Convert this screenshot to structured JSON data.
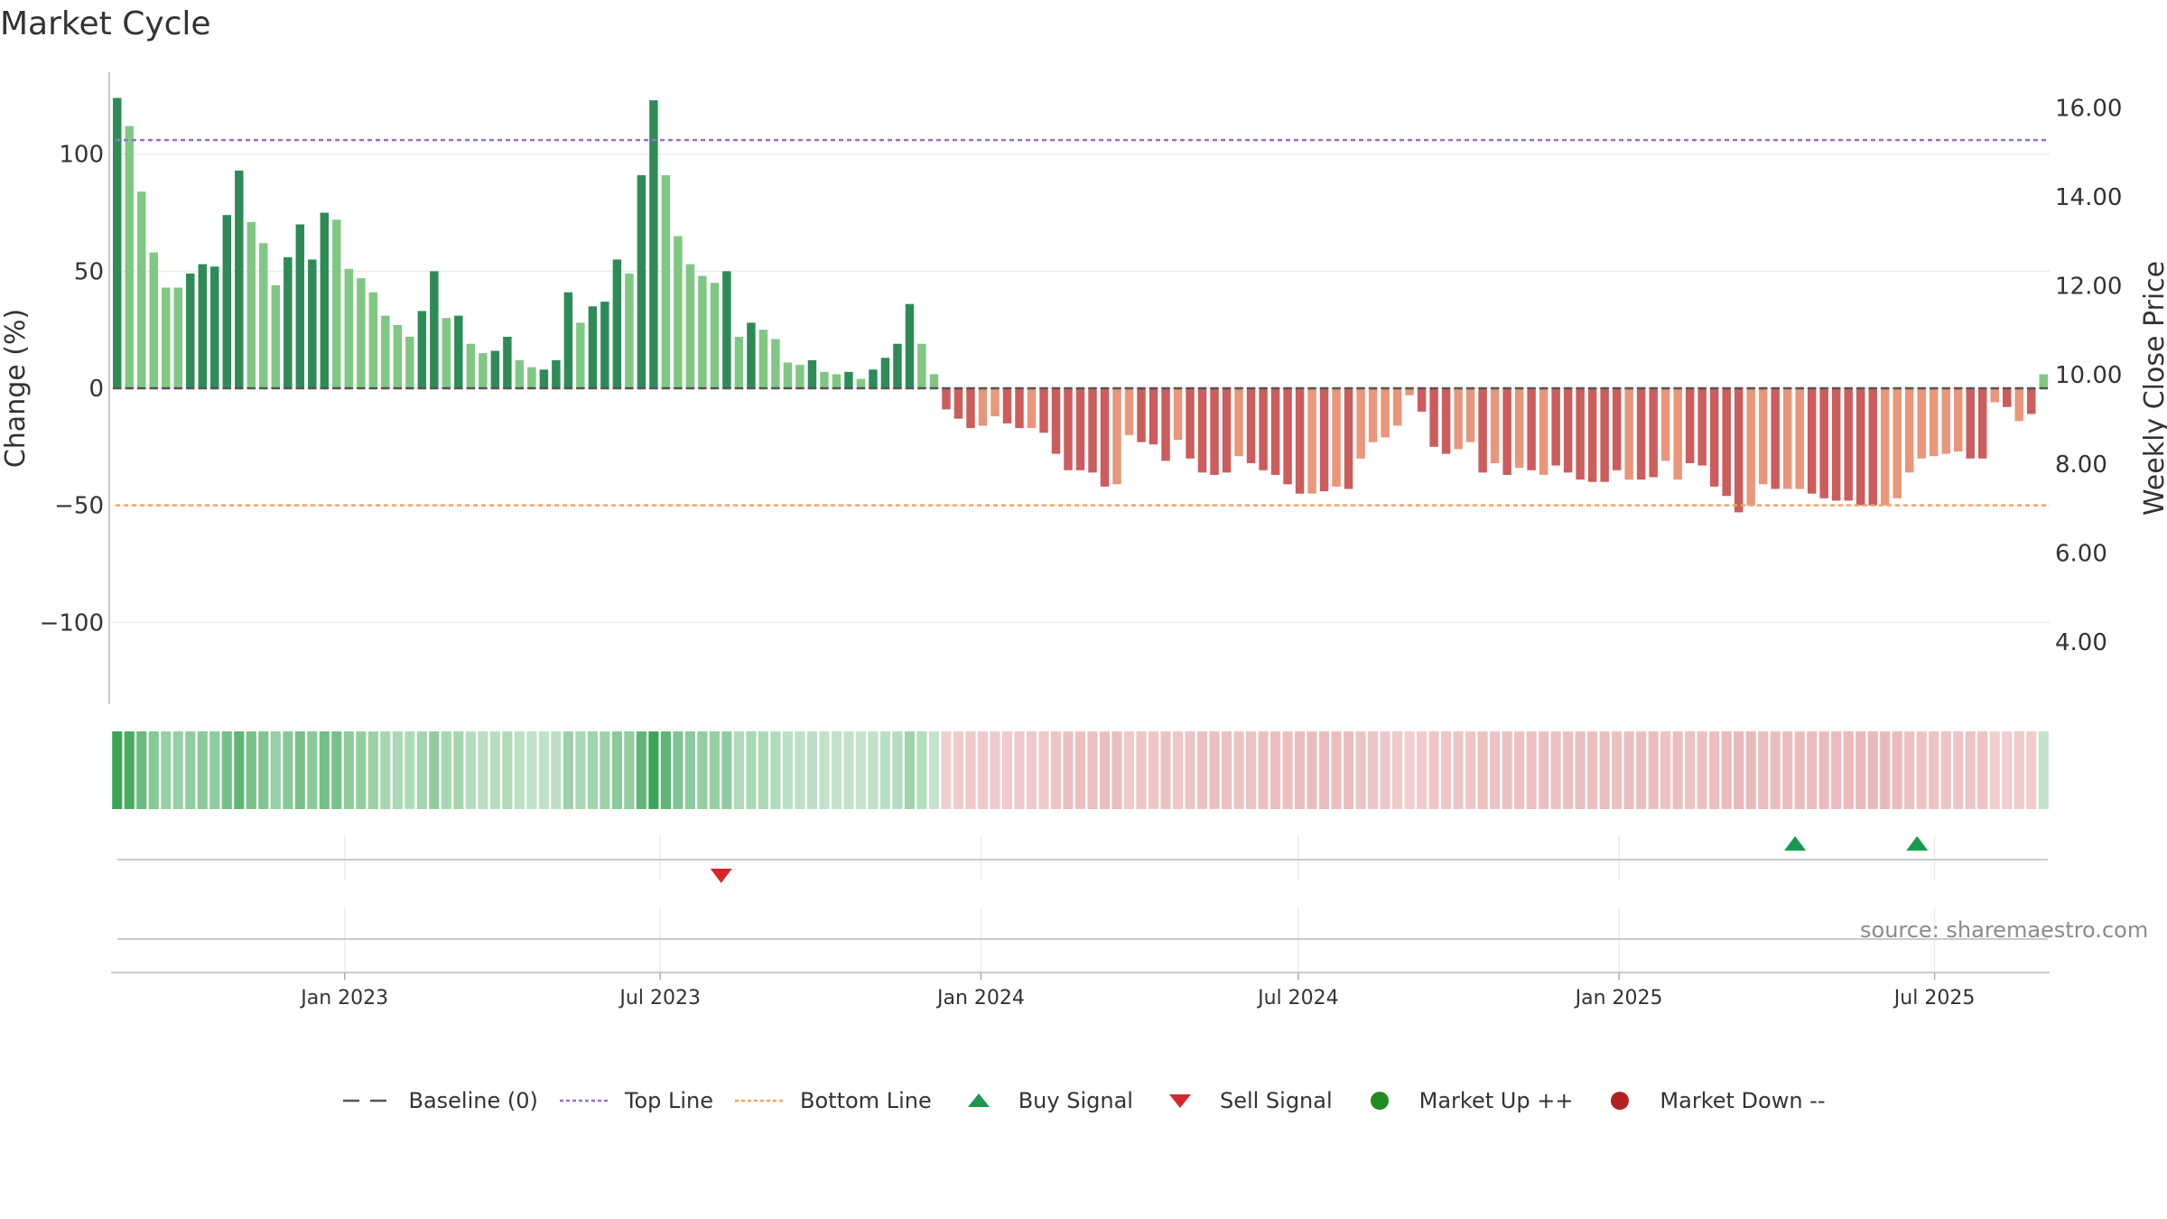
{
  "title": "Market Cycle",
  "source": "source: sharemaestro.com",
  "colors": {
    "up_strong": "#2e8b57",
    "up_weak": "#81c784",
    "down_strong": "#cd5c5c",
    "down_weak": "#e9967a",
    "top_line": "#9370db",
    "bottom_line": "#f4a460",
    "buy": "#1a9850",
    "sell": "#d62728",
    "market_up": "#228b22",
    "market_down": "#b22222",
    "baseline": "#555555"
  },
  "legend": [
    {
      "key": "baseline",
      "label": "Baseline (0)",
      "icon": "dash-line-icon"
    },
    {
      "key": "top_line",
      "label": "Top Line",
      "icon": "dotted-line-icon"
    },
    {
      "key": "bottom_line",
      "label": "Bottom Line",
      "icon": "dotted-line-icon"
    },
    {
      "key": "buy",
      "label": "Buy Signal",
      "icon": "triangle-up-icon"
    },
    {
      "key": "sell",
      "label": "Sell Signal",
      "icon": "triangle-down-icon"
    },
    {
      "key": "market_up",
      "label": "Market Up ++",
      "icon": "circle-icon"
    },
    {
      "key": "market_down",
      "label": "Market Down --",
      "icon": "circle-icon"
    }
  ],
  "chart_data": {
    "type": "bar",
    "title": "Market Cycle",
    "ylabel": "Change (%)",
    "y2label": "Weekly Close Price",
    "ylim": [
      -135,
      135
    ],
    "y2lim": [
      2.6,
      16.8
    ],
    "yticks": [
      100,
      50,
      0,
      -50,
      -100
    ],
    "ytick_labels": [
      "100",
      "50",
      "0",
      "−50",
      "−100"
    ],
    "y2ticks": [
      16,
      14,
      12,
      10,
      8,
      6,
      4
    ],
    "y2tick_labels": [
      "16.00",
      "14.00",
      "12.00",
      "10.00",
      "8.00",
      "6.00",
      "4.00"
    ],
    "x_start": "2022-08-20",
    "x_end": "2025-09-05",
    "xticks": [
      "2023-01-01",
      "2023-07-01",
      "2024-01-01",
      "2024-07-01",
      "2025-01-01",
      "2025-07-01"
    ],
    "xtick_labels": [
      "Jan 2023",
      "Jul 2023",
      "Jan 2024",
      "Jul 2024",
      "Jan 2025",
      "Jul 2025"
    ],
    "top_line": 106,
    "bottom_line": -50,
    "baseline": 0,
    "values": [
      124,
      112,
      84,
      58,
      43,
      43,
      49,
      53,
      52,
      74,
      93,
      71,
      62,
      44,
      56,
      70,
      55,
      75,
      72,
      51,
      47,
      41,
      31,
      27,
      22,
      33,
      50,
      30,
      31,
      19,
      15,
      16,
      22,
      12,
      9,
      8,
      12,
      41,
      28,
      35,
      37,
      55,
      49,
      91,
      123,
      91,
      65,
      53,
      48,
      45,
      50,
      22,
      28,
      25,
      21,
      11,
      10,
      12,
      7,
      6,
      7,
      4,
      8,
      13,
      19,
      36,
      19,
      6,
      -9,
      -13,
      -17,
      -16,
      -12,
      -15,
      -17,
      -17,
      -19,
      -28,
      -35,
      -35,
      -36,
      -42,
      -41,
      -20,
      -23,
      -24,
      -31,
      -22,
      -30,
      -36,
      -37,
      -36,
      -29,
      -32,
      -35,
      -37,
      -41,
      -45,
      -45,
      -44,
      -42,
      -43,
      -30,
      -23,
      -21,
      -16,
      -3,
      -10,
      -25,
      -28,
      -26,
      -23,
      -36,
      -32,
      -37,
      -34,
      -35,
      -37,
      -33,
      -36,
      -39,
      -40,
      -40,
      -35,
      -39,
      -39,
      -38,
      -31,
      -39,
      -32,
      -33,
      -42,
      -46,
      -53,
      -50,
      -41,
      -43,
      -43,
      -43,
      -45,
      -47,
      -48,
      -48,
      -50,
      -50,
      -50,
      -47,
      -36,
      -30,
      -29,
      -28,
      -27,
      -30,
      -30,
      -6,
      -8,
      -14,
      -11,
      6
    ],
    "strength": [
      "s",
      "w",
      "w",
      "w",
      "w",
      "w",
      "s",
      "s",
      "s",
      "s",
      "s",
      "w",
      "w",
      "w",
      "s",
      "s",
      "s",
      "s",
      "w",
      "w",
      "w",
      "w",
      "w",
      "w",
      "w",
      "s",
      "s",
      "w",
      "s",
      "w",
      "w",
      "s",
      "s",
      "w",
      "w",
      "s",
      "s",
      "s",
      "w",
      "s",
      "s",
      "s",
      "w",
      "s",
      "s",
      "w",
      "w",
      "w",
      "w",
      "w",
      "s",
      "w",
      "s",
      "w",
      "w",
      "w",
      "w",
      "s",
      "w",
      "w",
      "s",
      "w",
      "s",
      "s",
      "s",
      "s",
      "w",
      "w",
      "s",
      "s",
      "s",
      "w",
      "w",
      "s",
      "s",
      "w",
      "s",
      "s",
      "s",
      "s",
      "s",
      "s",
      "w",
      "w",
      "s",
      "s",
      "s",
      "w",
      "s",
      "s",
      "s",
      "s",
      "w",
      "s",
      "s",
      "s",
      "s",
      "s",
      "w",
      "s",
      "w",
      "s",
      "w",
      "w",
      "w",
      "w",
      "w",
      "s",
      "s",
      "s",
      "w",
      "w",
      "s",
      "w",
      "s",
      "w",
      "s",
      "w",
      "s",
      "s",
      "s",
      "s",
      "s",
      "s",
      "w",
      "s",
      "s",
      "w",
      "w",
      "s",
      "s",
      "s",
      "s",
      "s",
      "w",
      "w",
      "s",
      "w",
      "w",
      "s",
      "s",
      "s",
      "s",
      "s",
      "s",
      "w",
      "w",
      "w",
      "w",
      "w",
      "w",
      "w",
      "s",
      "s",
      "w",
      "s",
      "w",
      "s"
    ],
    "signals": [
      {
        "type": "sell",
        "x": "2023-08-05"
      },
      {
        "type": "buy",
        "x": "2025-04-12"
      },
      {
        "type": "buy",
        "x": "2025-06-21"
      }
    ]
  }
}
